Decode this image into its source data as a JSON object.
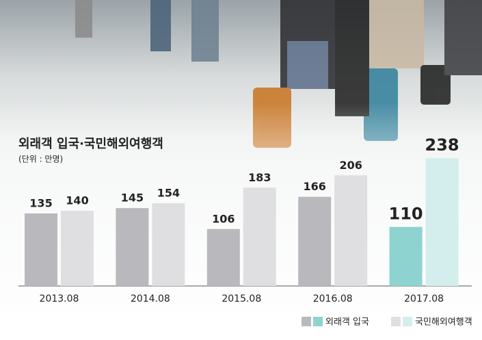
{
  "chart_data": {
    "type": "bar",
    "title": "외래객 입국·국민해외여행객",
    "subtitle": "(단위 : 만명)",
    "categories": [
      "2013.08",
      "2014.08",
      "2015.08",
      "2016.08",
      "2017.08"
    ],
    "series": [
      {
        "name": "외래객 입국",
        "colors": [
          "#b9b9bd",
          "#b9b9bd",
          "#b9b9bd",
          "#b9b9bd",
          "#8ed3cf"
        ],
        "values": [
          135,
          145,
          106,
          166,
          110
        ]
      },
      {
        "name": "국민해외여행객",
        "colors": [
          "#dfdfe1",
          "#dfdfe1",
          "#dfdfe1",
          "#dfdfe1",
          "#d3eeed"
        ],
        "values": [
          140,
          154,
          183,
          206,
          238
        ]
      }
    ]
  }
}
